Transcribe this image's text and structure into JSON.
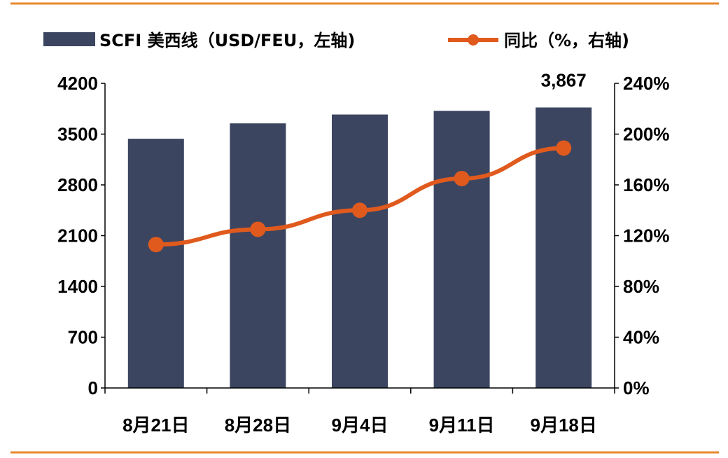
{
  "chart_data": {
    "type": "bar",
    "categories": [
      "8月21日",
      "8月28日",
      "9月4日",
      "9月11日",
      "9月18日"
    ],
    "series": [
      {
        "name": "SCFI 美西线（USD/FEU，左轴)",
        "type": "bar",
        "axis": "left",
        "values": [
          3436,
          3648,
          3770,
          3821,
          3867
        ],
        "color": "#3b4560"
      },
      {
        "name": "同比（%，右轴)",
        "type": "line",
        "axis": "right",
        "values": [
          1.13,
          1.25,
          1.4,
          1.65,
          1.89
        ],
        "color": "#e05a1e"
      }
    ],
    "data_labels": [
      {
        "category": "9月18日",
        "text": "3,867"
      }
    ],
    "y_left": {
      "ylim": [
        0,
        4200
      ],
      "ticks": [
        0,
        700,
        1400,
        2100,
        2800,
        3500,
        4200
      ],
      "tick_labels": [
        "0",
        "700",
        "1400",
        "2100",
        "2800",
        "3500",
        "4200"
      ]
    },
    "y_right": {
      "ylim": [
        0,
        2.4
      ],
      "ticks": [
        0,
        0.4,
        0.8,
        1.2,
        1.6,
        2.0,
        2.4
      ],
      "tick_labels": [
        "0%",
        "40%",
        "80%",
        "120%",
        "160%",
        "200%",
        "240%"
      ]
    },
    "legend_position": "top",
    "grid": false,
    "frame_color": "#e8892f"
  }
}
